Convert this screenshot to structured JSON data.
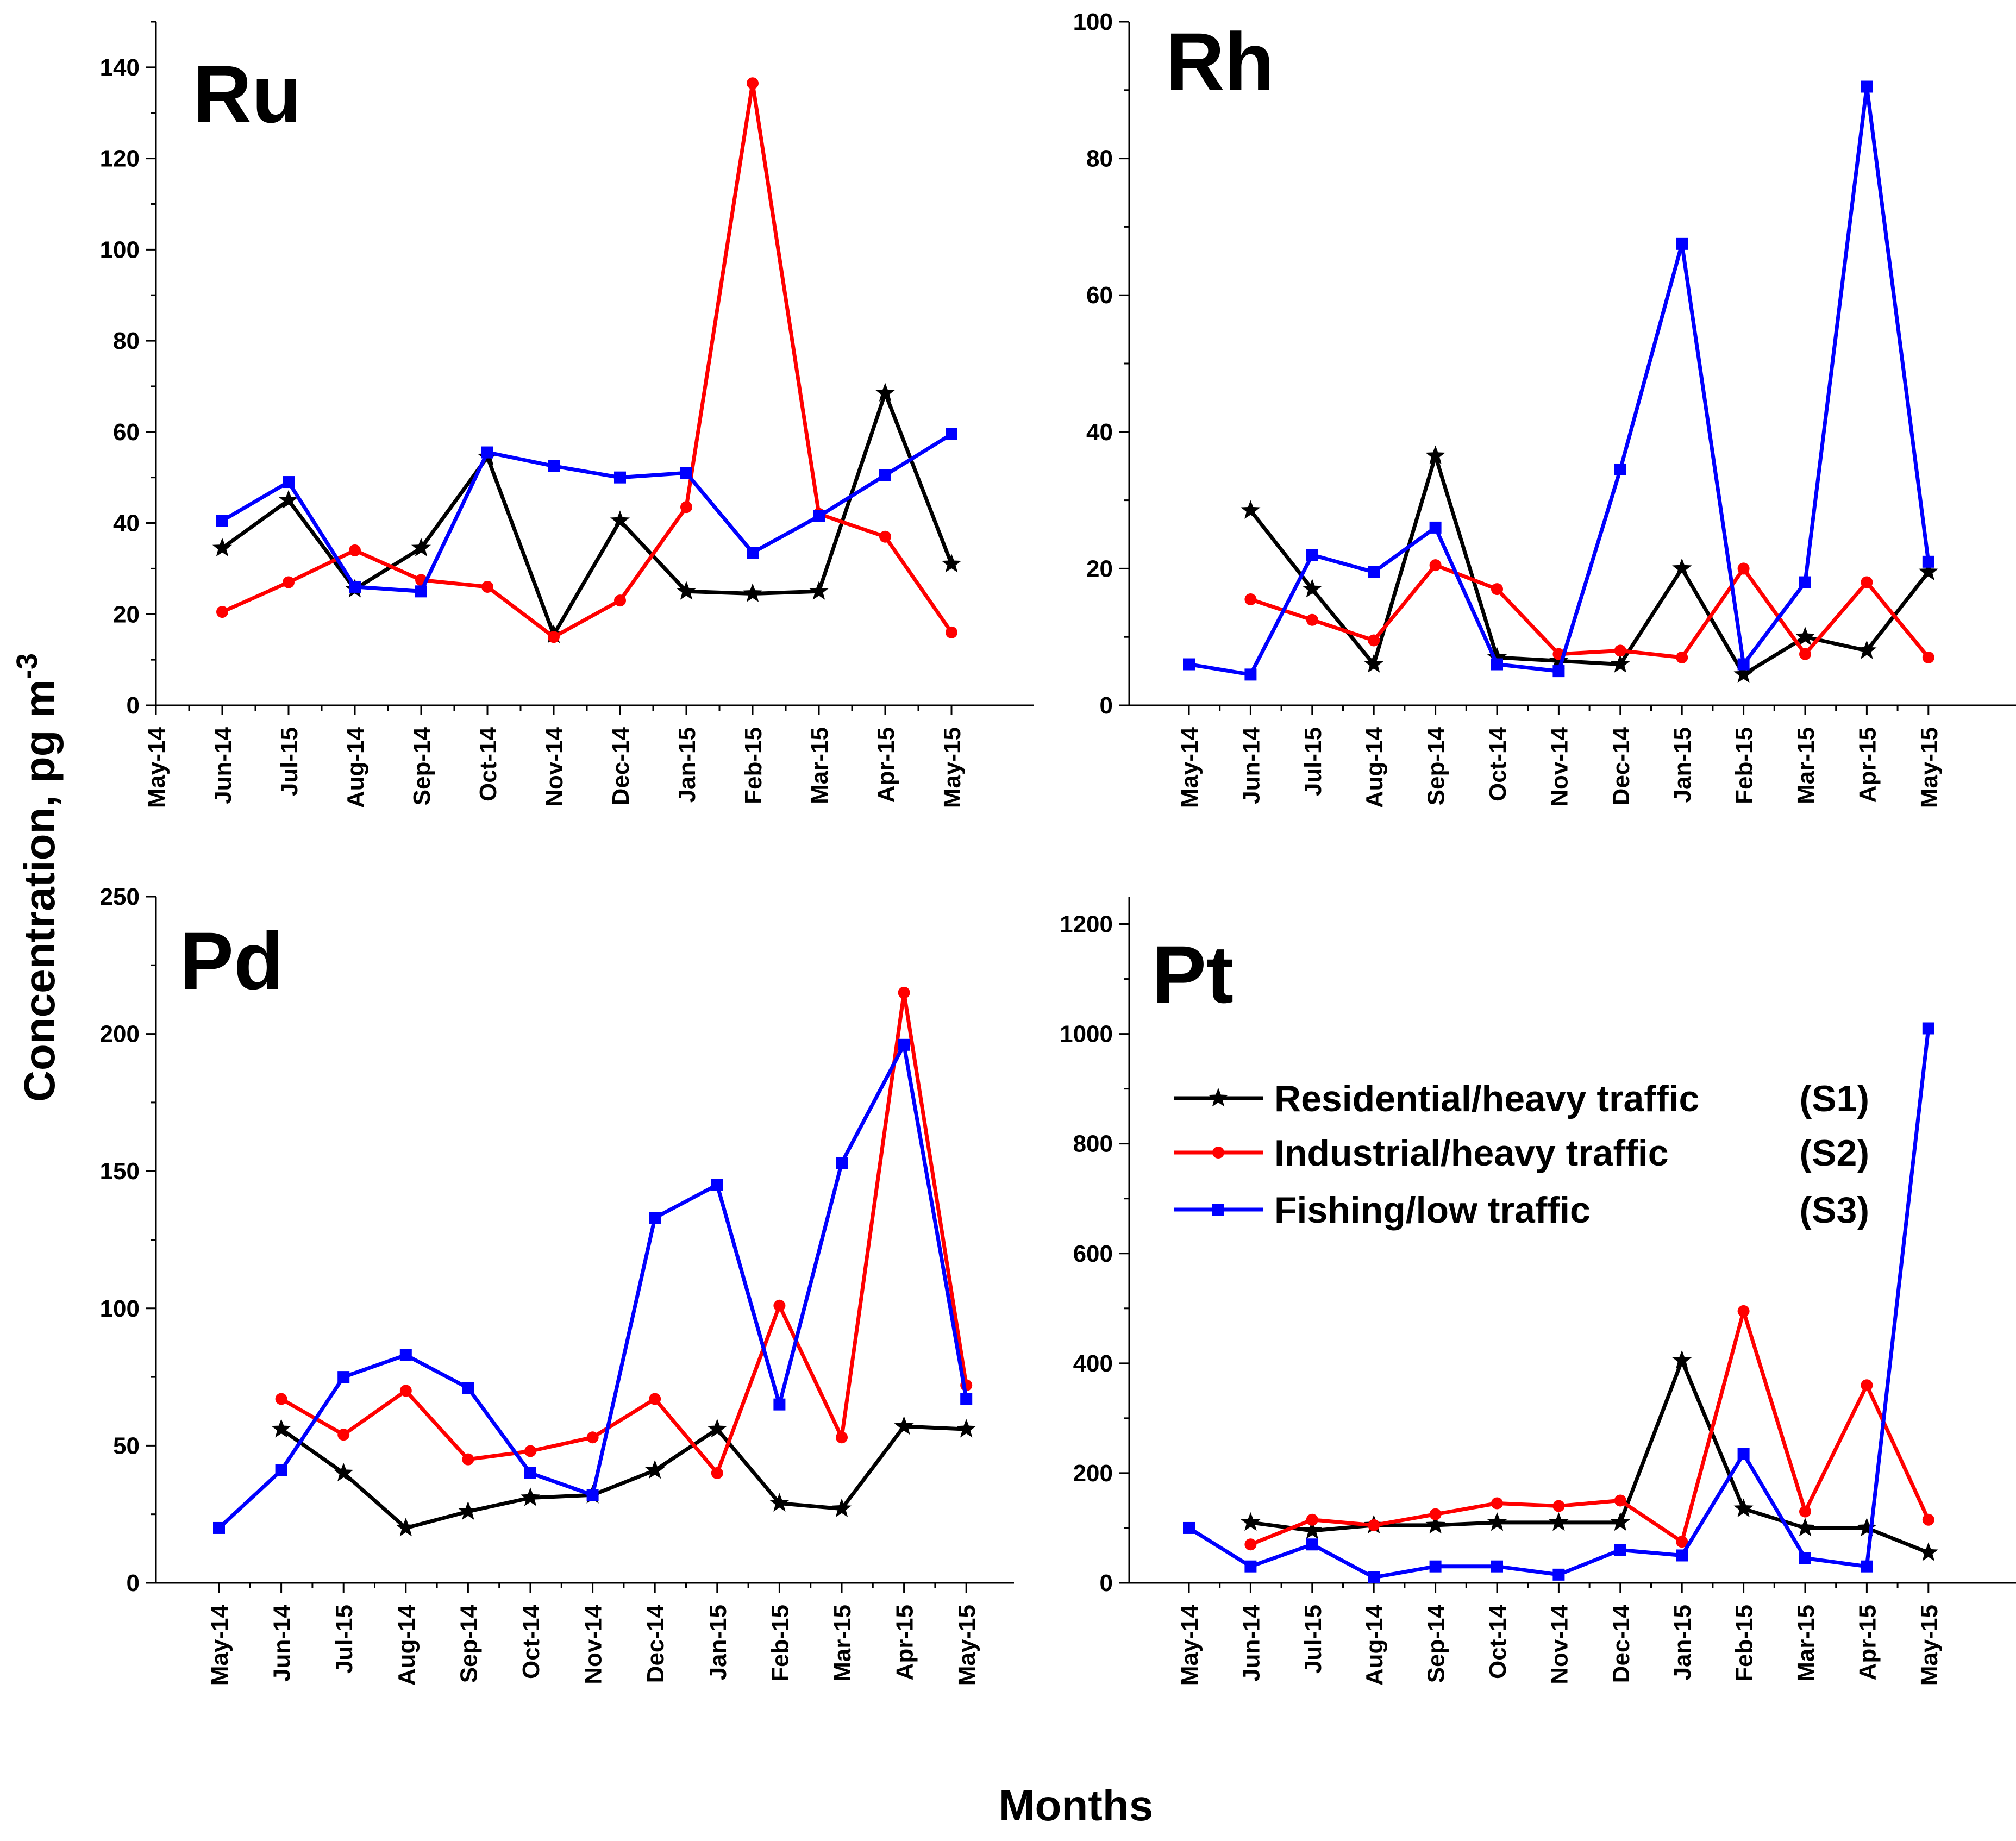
{
  "figure": {
    "ylabel_main": "Concentration, pg m",
    "ylabel_sup": "-3",
    "xlabel": "Months"
  },
  "legend": [
    {
      "name": "Residential/heavy traffic",
      "code": "(S1)",
      "color": "#000000",
      "marker": "star"
    },
    {
      "name": "Industrial/heavy traffic",
      "code": "(S2)",
      "color": "#ff0000",
      "marker": "circle"
    },
    {
      "name": "Fishing/low traffic",
      "code": "(S3)",
      "color": "#0000ff",
      "marker": "square"
    }
  ],
  "chart_data": [
    {
      "type": "line",
      "title": "Ru",
      "categories": [
        "May-14",
        "Jun-14",
        "Jul-15",
        "Aug-14",
        "Sep-14",
        "Oct-14",
        "Nov-14",
        "Dec-14",
        "Jan-15",
        "Feb-15",
        "Mar-15",
        "Apr-15",
        "May-15"
      ],
      "ylim": [
        0,
        150
      ],
      "yticks": [
        0,
        20,
        40,
        60,
        80,
        100,
        120,
        140
      ],
      "series": [
        {
          "name": "Residential/heavy traffic (S1)",
          "values": [
            null,
            34.5,
            45,
            25.5,
            34.5,
            54.5,
            15.5,
            40.5,
            25,
            24.5,
            25,
            68.5,
            31
          ]
        },
        {
          "name": "Industrial/heavy traffic (S2)",
          "values": [
            null,
            20.5,
            27,
            34,
            27.5,
            26,
            15,
            23,
            43.5,
            136.5,
            42,
            37,
            16
          ]
        },
        {
          "name": "Fishing/low traffic (S3)",
          "values": [
            null,
            40.5,
            49,
            26,
            25,
            55.5,
            52.5,
            50,
            51,
            33.5,
            41.5,
            50.5,
            59.5
          ]
        }
      ]
    },
    {
      "type": "line",
      "title": "Rh",
      "categories": [
        "May-14",
        "Jun-14",
        "Jul-15",
        "Aug-14",
        "Sep-14",
        "Oct-14",
        "Nov-14",
        "Dec-14",
        "Jan-15",
        "Feb-15",
        "Mar-15",
        "Apr-15",
        "May-15"
      ],
      "ylim": [
        0,
        100
      ],
      "yticks": [
        0,
        20,
        40,
        60,
        80,
        100
      ],
      "series": [
        {
          "name": "Residential/heavy traffic (S1)",
          "values": [
            null,
            28.5,
            17,
            6,
            36.5,
            7,
            6.5,
            6,
            20,
            4.5,
            10,
            8,
            19.5
          ]
        },
        {
          "name": "Industrial/heavy traffic (S2)",
          "values": [
            null,
            15.5,
            12.5,
            9.5,
            20.5,
            17,
            7.5,
            8,
            7,
            20,
            7.5,
            18,
            7
          ]
        },
        {
          "name": "Fishing/low traffic (S3)",
          "values": [
            6,
            4.5,
            22,
            19.5,
            26,
            6,
            5,
            34.5,
            67.5,
            6,
            18,
            90.5,
            21
          ]
        }
      ]
    },
    {
      "type": "line",
      "title": "Pd",
      "categories": [
        "May-14",
        "Jun-14",
        "Jul-15",
        "Aug-14",
        "Sep-14",
        "Oct-14",
        "Nov-14",
        "Dec-14",
        "Jan-15",
        "Feb-15",
        "Mar-15",
        "Apr-15",
        "May-15"
      ],
      "ylim": [
        0,
        250
      ],
      "yticks": [
        0,
        50,
        100,
        150,
        200,
        250
      ],
      "series": [
        {
          "name": "Residential/heavy traffic (S1)",
          "values": [
            null,
            56,
            40,
            20,
            26,
            31,
            32,
            41,
            56,
            29,
            27,
            57,
            56
          ]
        },
        {
          "name": "Industrial/heavy traffic (S2)",
          "values": [
            null,
            67,
            54,
            70,
            45,
            48,
            53,
            67,
            40,
            101,
            53,
            215,
            72
          ]
        },
        {
          "name": "Fishing/low traffic (S3)",
          "values": [
            20,
            41,
            75,
            83,
            71,
            40,
            32,
            133,
            145,
            65,
            153,
            196,
            67
          ]
        }
      ]
    },
    {
      "type": "line",
      "title": "Pt",
      "categories": [
        "May-14",
        "Jun-14",
        "Jul-15",
        "Aug-14",
        "Sep-14",
        "Oct-14",
        "Nov-14",
        "Dec-14",
        "Jan-15",
        "Feb-15",
        "Mar-15",
        "Apr-15",
        "May-15"
      ],
      "ylim": [
        0,
        1250
      ],
      "yticks": [
        0,
        200,
        400,
        600,
        800,
        1000,
        1200
      ],
      "series": [
        {
          "name": "Residential/heavy traffic (S1)",
          "values": [
            null,
            110,
            95,
            105,
            105,
            110,
            110,
            110,
            405,
            135,
            100,
            100,
            55
          ]
        },
        {
          "name": "Industrial/heavy traffic (S2)",
          "values": [
            null,
            70,
            115,
            105,
            125,
            145,
            140,
            150,
            75,
            495,
            130,
            360,
            115
          ]
        },
        {
          "name": "Fishing/low traffic (S3)",
          "values": [
            100,
            30,
            70,
            10,
            30,
            30,
            15,
            60,
            50,
            235,
            45,
            30,
            1010
          ]
        }
      ]
    }
  ]
}
